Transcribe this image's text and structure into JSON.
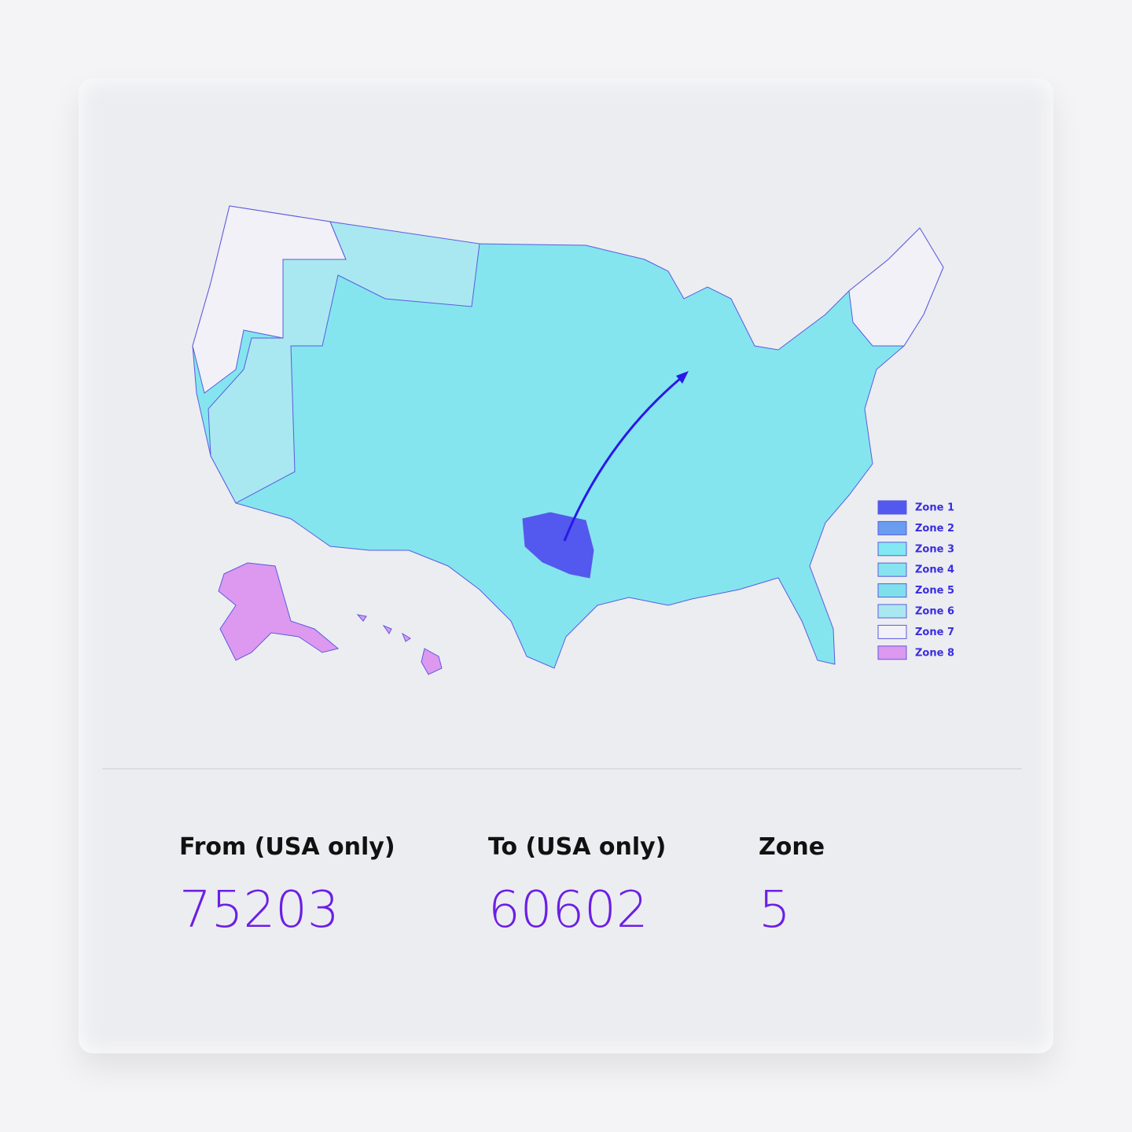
{
  "map": {
    "legend": [
      {
        "label": "Zone 1",
        "color": "#5358ef"
      },
      {
        "label": "Zone 2",
        "color": "#6a9cf0"
      },
      {
        "label": "Zone 3",
        "color": "#82e8f2"
      },
      {
        "label": "Zone 4",
        "color": "#86e4f0"
      },
      {
        "label": "Zone 5",
        "color": "#7fe0ec"
      },
      {
        "label": "Zone 6",
        "color": "#a9e8f1"
      },
      {
        "label": "Zone 7",
        "color": "#f1f1f7"
      },
      {
        "label": "Zone 8",
        "color": "#dd98f0"
      }
    ]
  },
  "form": {
    "fields": [
      {
        "label": "From (USA only)",
        "value": "75203"
      },
      {
        "label": "To (USA only)",
        "value": "60602"
      },
      {
        "label": "Zone",
        "value": "5"
      }
    ]
  }
}
